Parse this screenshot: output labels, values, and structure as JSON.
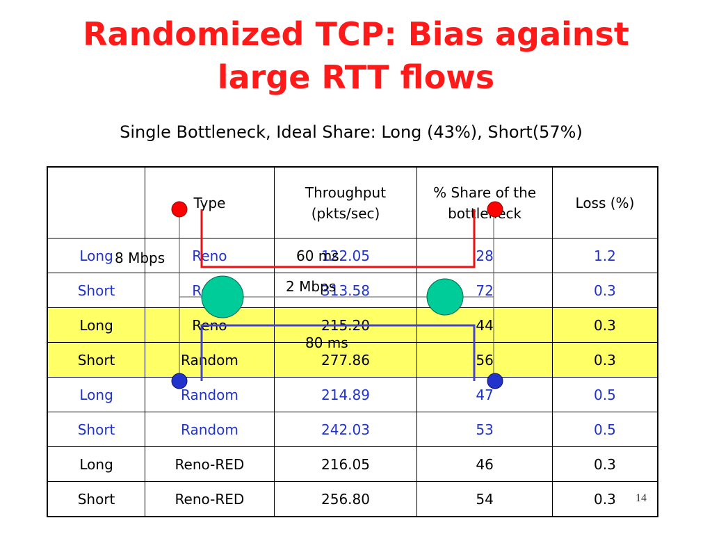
{
  "title": [
    "Randomized TCP: Bias against",
    "large RTT flows"
  ],
  "subtitle": "Single Bottleneck, Ideal Share: Long (43%), Short(57%)",
  "table": {
    "headers": [
      "",
      "Type",
      "Throughput (pkts/sec)",
      "% Share of the bottleneck",
      "Loss (%)"
    ],
    "rows": [
      {
        "flow": "Long",
        "type": "Reno",
        "throughput": "122.05",
        "share": "28",
        "loss": "1.2"
      },
      {
        "flow": "Short",
        "type": "Reno",
        "throughput": "313.58",
        "share": "72",
        "loss": "0.3"
      },
      {
        "flow": "Long",
        "type": "Reno",
        "throughput": "215.20",
        "share": "44",
        "loss": "0.3"
      },
      {
        "flow": "Short",
        "type": "Random",
        "throughput": "277.86",
        "share": "56",
        "loss": "0.3"
      },
      {
        "flow": "Long",
        "type": "Random",
        "throughput": "214.89",
        "share": "47",
        "loss": "0.5"
      },
      {
        "flow": "Short",
        "type": "Random",
        "throughput": "242.03",
        "share": "53",
        "loss": "0.5"
      },
      {
        "flow": "Long",
        "type": "Reno-RED",
        "throughput": "216.05",
        "share": "46",
        "loss": "0.3"
      },
      {
        "flow": "Short",
        "type": "Reno-RED",
        "throughput": "256.80",
        "share": "54",
        "loss": "0.3"
      }
    ]
  },
  "diagram": {
    "link_left": "8 Mbps",
    "delay_top": "60 ms",
    "bottleneck": "2 Mbps",
    "delay_bottom": "80 ms"
  },
  "colors": {
    "title": "#ff1a1a",
    "blue_text": "#2233cc",
    "highlight": "#ffff66",
    "router": "#00cc99",
    "red_node": "#ff0000",
    "blue_node": "#2233cc"
  },
  "page_number": "14"
}
